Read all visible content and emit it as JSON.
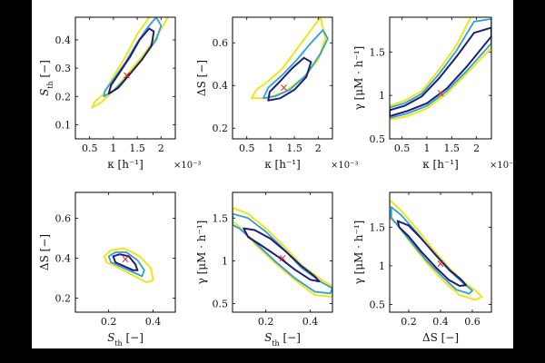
{
  "colors": {
    "background": "#ffffff",
    "frame": "#000000",
    "contour_outer": "#f2e41b",
    "contour_mid": "#2f9fd8",
    "contour_inner": "#1f1e73",
    "marker": "#e8262b"
  },
  "chart_data": [
    {
      "type": "contour",
      "xlabel": "κ [h⁻¹]",
      "ylabel": "S_th [−]",
      "x_multiplier": "×10⁻³",
      "xlim": [
        0.2,
        2.3
      ],
      "ylim": [
        0.05,
        0.48
      ],
      "xticks": [
        0.5,
        1,
        1.5,
        2
      ],
      "xtick_labels": [
        "0.5",
        "1",
        "1.5",
        "2"
      ],
      "yticks": [
        0.1,
        0.2,
        0.3,
        0.4
      ],
      "ytick_labels": [
        "0.1",
        "0.2",
        "0.3",
        "0.4"
      ],
      "marker": {
        "x": 1.28,
        "y": 0.275,
        "symbol": "×"
      },
      "contours": {
        "yellow": [
          [
            0.55,
            0.16
          ],
          [
            0.75,
            0.18
          ],
          [
            1.0,
            0.22
          ],
          [
            1.3,
            0.28
          ],
          [
            1.6,
            0.34
          ],
          [
            1.9,
            0.41
          ],
          [
            2.15,
            0.48
          ],
          [
            2.05,
            0.5
          ],
          [
            1.75,
            0.48
          ],
          [
            1.5,
            0.42
          ],
          [
            1.25,
            0.34
          ],
          [
            1.0,
            0.27
          ],
          [
            0.8,
            0.21
          ],
          [
            0.6,
            0.18
          ]
        ],
        "blue": [
          [
            0.8,
            0.2
          ],
          [
            1.0,
            0.22
          ],
          [
            1.3,
            0.27
          ],
          [
            1.6,
            0.33
          ],
          [
            1.9,
            0.4
          ],
          [
            2.0,
            0.45
          ],
          [
            1.9,
            0.48
          ],
          [
            1.7,
            0.44
          ],
          [
            1.5,
            0.39
          ],
          [
            1.25,
            0.32
          ],
          [
            1.0,
            0.26
          ],
          [
            0.82,
            0.22
          ]
        ],
        "navy": [
          [
            0.9,
            0.21
          ],
          [
            1.1,
            0.23
          ],
          [
            1.35,
            0.28
          ],
          [
            1.6,
            0.33
          ],
          [
            1.8,
            0.38
          ],
          [
            1.85,
            0.43
          ],
          [
            1.75,
            0.44
          ],
          [
            1.55,
            0.4
          ],
          [
            1.35,
            0.34
          ],
          [
            1.15,
            0.29
          ],
          [
            0.95,
            0.24
          ]
        ]
      }
    },
    {
      "type": "contour",
      "xlabel": "κ [h⁻¹]",
      "ylabel": "ΔS [−]",
      "x_multiplier": "×10⁻³",
      "xlim": [
        0.2,
        2.3
      ],
      "ylim": [
        0.15,
        0.72
      ],
      "xticks": [
        0.5,
        1,
        1.5,
        2
      ],
      "xtick_labels": [
        "0.5",
        "1",
        "1.5",
        "2"
      ],
      "yticks": [
        0.2,
        0.4,
        0.6
      ],
      "ytick_labels": [
        "0.2",
        "0.4",
        "0.6"
      ],
      "marker": {
        "x": 1.28,
        "y": 0.39,
        "symbol": "×"
      },
      "contours": {
        "yellow": [
          [
            0.6,
            0.34
          ],
          [
            0.9,
            0.34
          ],
          [
            1.3,
            0.37
          ],
          [
            1.7,
            0.44
          ],
          [
            2.0,
            0.52
          ],
          [
            2.15,
            0.62
          ],
          [
            2.05,
            0.72
          ],
          [
            1.85,
            0.66
          ],
          [
            1.55,
            0.57
          ],
          [
            1.25,
            0.48
          ],
          [
            0.95,
            0.42
          ],
          [
            0.7,
            0.38
          ]
        ],
        "blue": [
          [
            0.85,
            0.34
          ],
          [
            1.1,
            0.35
          ],
          [
            1.4,
            0.38
          ],
          [
            1.75,
            0.45
          ],
          [
            2.05,
            0.55
          ],
          [
            2.2,
            0.62
          ],
          [
            2.1,
            0.66
          ],
          [
            1.85,
            0.6
          ],
          [
            1.55,
            0.52
          ],
          [
            1.25,
            0.45
          ],
          [
            0.95,
            0.39
          ]
        ],
        "navy": [
          [
            0.95,
            0.33
          ],
          [
            1.2,
            0.34
          ],
          [
            1.5,
            0.38
          ],
          [
            1.75,
            0.44
          ],
          [
            1.85,
            0.51
          ],
          [
            1.7,
            0.53
          ],
          [
            1.45,
            0.48
          ],
          [
            1.2,
            0.42
          ],
          [
            0.98,
            0.37
          ]
        ]
      }
    },
    {
      "type": "contour",
      "xlabel": "κ [h⁻¹]",
      "ylabel": "γ [μM · h⁻¹]",
      "x_multiplier": "×10⁻³",
      "xlim": [
        0.25,
        2.3
      ],
      "ylim": [
        0.5,
        1.9
      ],
      "xticks": [
        0.5,
        1,
        1.5,
        2
      ],
      "xtick_labels": [
        "0.5",
        "1",
        "1.5",
        "2"
      ],
      "yticks": [
        0.5,
        1,
        1.5
      ],
      "ytick_labels": [
        "0.5",
        "1",
        "1.5"
      ],
      "marker": {
        "x": 1.28,
        "y": 1.03,
        "symbol": "×"
      },
      "contours": {
        "yellow": [
          [
            0.25,
            0.72
          ],
          [
            0.6,
            0.76
          ],
          [
            1.0,
            0.85
          ],
          [
            1.4,
            1.02
          ],
          [
            1.8,
            1.25
          ],
          [
            2.3,
            1.55
          ],
          [
            2.3,
            1.95
          ],
          [
            1.9,
            1.92
          ],
          [
            1.6,
            1.58
          ],
          [
            1.25,
            1.3
          ],
          [
            0.9,
            1.05
          ],
          [
            0.55,
            0.94
          ],
          [
            0.25,
            0.88
          ]
        ],
        "blue": [
          [
            0.25,
            0.74
          ],
          [
            0.6,
            0.79
          ],
          [
            1.0,
            0.88
          ],
          [
            1.4,
            1.05
          ],
          [
            1.8,
            1.28
          ],
          [
            2.3,
            1.6
          ],
          [
            2.3,
            1.88
          ],
          [
            1.95,
            1.85
          ],
          [
            1.6,
            1.52
          ],
          [
            1.25,
            1.25
          ],
          [
            0.9,
            1.02
          ],
          [
            0.55,
            0.91
          ],
          [
            0.25,
            0.86
          ]
        ],
        "navy": [
          [
            0.25,
            0.76
          ],
          [
            0.6,
            0.82
          ],
          [
            1.0,
            0.91
          ],
          [
            1.4,
            1.08
          ],
          [
            1.8,
            1.33
          ],
          [
            2.3,
            1.68
          ],
          [
            2.3,
            1.78
          ],
          [
            1.95,
            1.72
          ],
          [
            1.6,
            1.45
          ],
          [
            1.25,
            1.2
          ],
          [
            0.9,
            0.99
          ],
          [
            0.55,
            0.88
          ],
          [
            0.25,
            0.83
          ]
        ]
      }
    },
    {
      "type": "contour",
      "xlabel": "S_th [−]",
      "ylabel": "ΔS [−]",
      "xlim": [
        0.05,
        0.5
      ],
      "ylim": [
        0.13,
        0.73
      ],
      "xticks": [
        0.2,
        0.4
      ],
      "xtick_labels": [
        "0.2",
        "0.4"
      ],
      "yticks": [
        0.2,
        0.4,
        0.6
      ],
      "ytick_labels": [
        "0.2",
        "0.4",
        "0.6"
      ],
      "marker": {
        "x": 0.275,
        "y": 0.395,
        "symbol": "×"
      },
      "contours": {
        "yellow": [
          [
            0.18,
            0.41
          ],
          [
            0.21,
            0.44
          ],
          [
            0.27,
            0.45
          ],
          [
            0.34,
            0.41
          ],
          [
            0.39,
            0.35
          ],
          [
            0.4,
            0.29
          ],
          [
            0.37,
            0.28
          ],
          [
            0.3,
            0.32
          ],
          [
            0.23,
            0.36
          ],
          [
            0.19,
            0.38
          ]
        ],
        "blue": [
          [
            0.2,
            0.41
          ],
          [
            0.23,
            0.43
          ],
          [
            0.28,
            0.43
          ],
          [
            0.33,
            0.39
          ],
          [
            0.36,
            0.34
          ],
          [
            0.35,
            0.31
          ],
          [
            0.31,
            0.33
          ],
          [
            0.25,
            0.36
          ],
          [
            0.21,
            0.38
          ]
        ],
        "navy": [
          [
            0.22,
            0.41
          ],
          [
            0.25,
            0.42
          ],
          [
            0.29,
            0.41
          ],
          [
            0.32,
            0.37
          ],
          [
            0.33,
            0.34
          ],
          [
            0.31,
            0.34
          ],
          [
            0.27,
            0.36
          ],
          [
            0.23,
            0.38
          ]
        ]
      }
    },
    {
      "type": "contour",
      "xlabel": "S_th [−]",
      "ylabel": "γ [μM · h⁻¹]",
      "xlim": [
        0.05,
        0.5
      ],
      "ylim": [
        0.4,
        1.8
      ],
      "xticks": [
        0.2,
        0.4
      ],
      "xtick_labels": [
        "0.2",
        "0.4"
      ],
      "yticks": [
        0.5,
        1,
        1.5
      ],
      "ytick_labels": [
        "0.5",
        "1",
        "1.5"
      ],
      "marker": {
        "x": 0.275,
        "y": 1.03,
        "symbol": "×"
      },
      "contours": {
        "yellow": [
          [
            0.05,
            1.62
          ],
          [
            0.12,
            1.55
          ],
          [
            0.2,
            1.38
          ],
          [
            0.28,
            1.18
          ],
          [
            0.36,
            0.95
          ],
          [
            0.45,
            0.78
          ],
          [
            0.5,
            0.7
          ],
          [
            0.5,
            0.58
          ],
          [
            0.42,
            0.6
          ],
          [
            0.33,
            0.78
          ],
          [
            0.24,
            0.98
          ],
          [
            0.15,
            1.2
          ],
          [
            0.08,
            1.4
          ],
          [
            0.05,
            1.46
          ]
        ],
        "blue": [
          [
            0.05,
            1.55
          ],
          [
            0.12,
            1.5
          ],
          [
            0.2,
            1.34
          ],
          [
            0.28,
            1.14
          ],
          [
            0.36,
            0.92
          ],
          [
            0.45,
            0.75
          ],
          [
            0.5,
            0.68
          ],
          [
            0.49,
            0.62
          ],
          [
            0.42,
            0.64
          ],
          [
            0.33,
            0.8
          ],
          [
            0.24,
            1.0
          ],
          [
            0.15,
            1.22
          ],
          [
            0.08,
            1.38
          ],
          [
            0.05,
            1.42
          ]
        ],
        "navy": [
          [
            0.1,
            1.38
          ],
          [
            0.15,
            1.36
          ],
          [
            0.22,
            1.26
          ],
          [
            0.29,
            1.11
          ],
          [
            0.36,
            0.94
          ],
          [
            0.42,
            0.82
          ],
          [
            0.44,
            0.76
          ],
          [
            0.4,
            0.78
          ],
          [
            0.33,
            0.9
          ],
          [
            0.26,
            1.04
          ],
          [
            0.18,
            1.18
          ],
          [
            0.12,
            1.28
          ]
        ]
      }
    },
    {
      "type": "contour",
      "xlabel": "ΔS [−]",
      "ylabel": "γ [μM · h⁻¹]",
      "xlim": [
        0.08,
        0.72
      ],
      "ylim": [
        0.4,
        1.95
      ],
      "xticks": [
        0.2,
        0.4,
        0.6
      ],
      "xtick_labels": [
        "0.2",
        "0.4",
        "0.6"
      ],
      "yticks": [
        0.5,
        1,
        1.5
      ],
      "ytick_labels": [
        "0.5",
        "1",
        "1.5"
      ],
      "marker": {
        "x": 0.4,
        "y": 1.03,
        "symbol": "×"
      },
      "contours": {
        "yellow": [
          [
            0.08,
            1.85
          ],
          [
            0.15,
            1.72
          ],
          [
            0.25,
            1.48
          ],
          [
            0.35,
            1.22
          ],
          [
            0.45,
            0.98
          ],
          [
            0.55,
            0.78
          ],
          [
            0.62,
            0.68
          ],
          [
            0.66,
            0.6
          ],
          [
            0.62,
            0.56
          ],
          [
            0.52,
            0.62
          ],
          [
            0.42,
            0.8
          ],
          [
            0.32,
            1.02
          ],
          [
            0.22,
            1.28
          ],
          [
            0.12,
            1.55
          ],
          [
            0.08,
            1.62
          ]
        ],
        "blue": [
          [
            0.09,
            1.76
          ],
          [
            0.15,
            1.66
          ],
          [
            0.25,
            1.43
          ],
          [
            0.35,
            1.18
          ],
          [
            0.45,
            0.95
          ],
          [
            0.54,
            0.78
          ],
          [
            0.6,
            0.68
          ],
          [
            0.58,
            0.64
          ],
          [
            0.5,
            0.69
          ],
          [
            0.41,
            0.86
          ],
          [
            0.31,
            1.07
          ],
          [
            0.21,
            1.32
          ],
          [
            0.12,
            1.55
          ],
          [
            0.09,
            1.62
          ]
        ],
        "navy": [
          [
            0.13,
            1.58
          ],
          [
            0.2,
            1.52
          ],
          [
            0.28,
            1.35
          ],
          [
            0.37,
            1.14
          ],
          [
            0.46,
            0.94
          ],
          [
            0.53,
            0.82
          ],
          [
            0.56,
            0.75
          ],
          [
            0.52,
            0.74
          ],
          [
            0.45,
            0.82
          ],
          [
            0.37,
            0.98
          ],
          [
            0.28,
            1.18
          ],
          [
            0.2,
            1.38
          ],
          [
            0.14,
            1.5
          ]
        ]
      }
    }
  ]
}
